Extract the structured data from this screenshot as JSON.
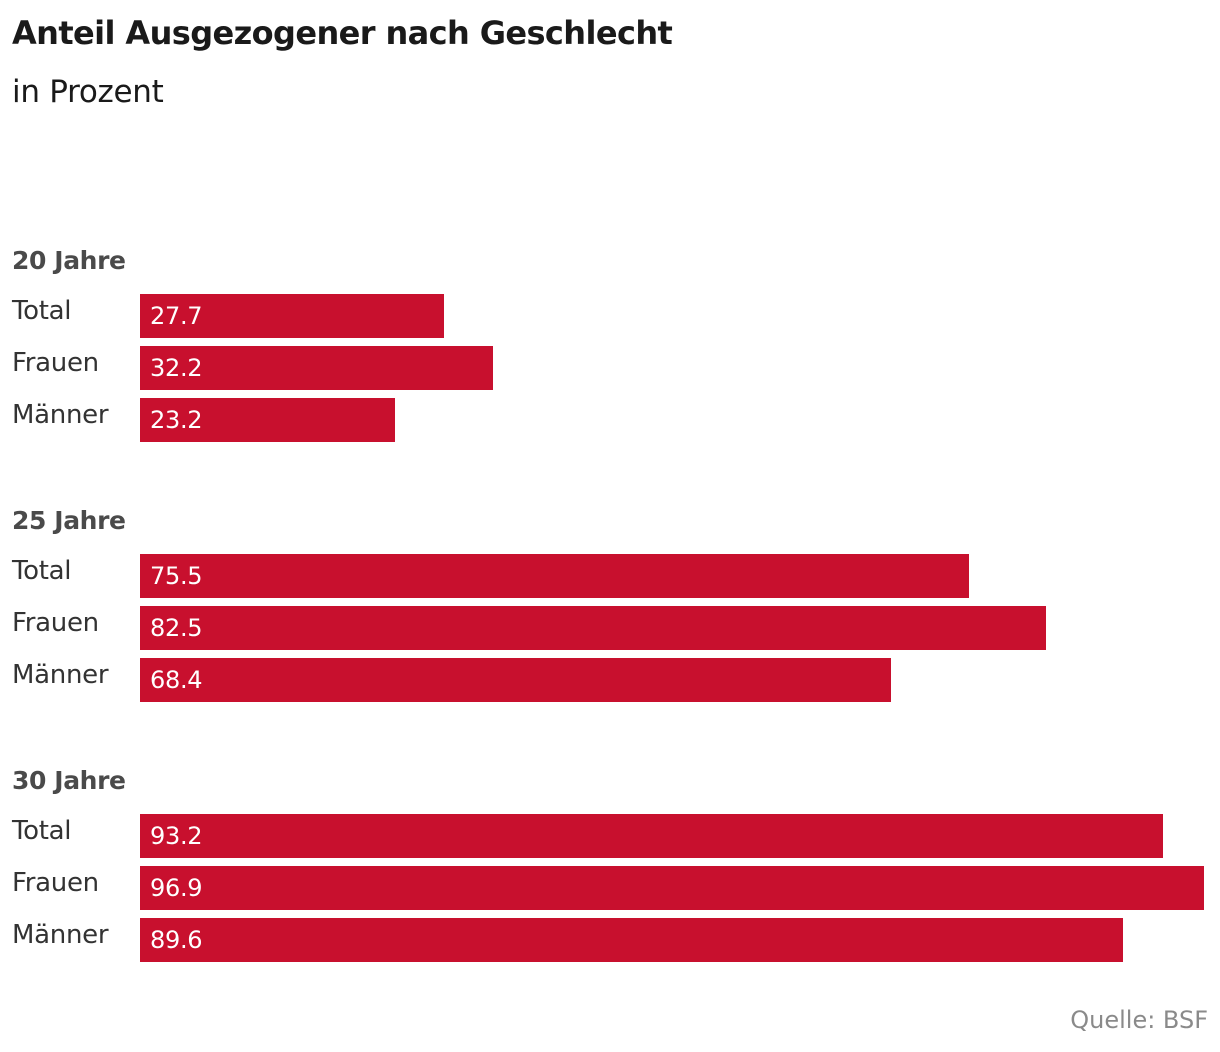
{
  "chart_data": {
    "type": "bar",
    "orientation": "horizontal",
    "title": "Anteil Ausgezogener nach Geschlecht",
    "subtitle": "in Prozent",
    "source": "Quelle: BSF",
    "bar_color": "#c8102e",
    "xlim": [
      0,
      100
    ],
    "groups": [
      {
        "label": "20 Jahre",
        "categories": [
          "Total",
          "Frauen",
          "Männer"
        ],
        "values": [
          27.7,
          32.2,
          23.2
        ]
      },
      {
        "label": "25 Jahre",
        "categories": [
          "Total",
          "Frauen",
          "Männer"
        ],
        "values": [
          75.5,
          82.5,
          68.4
        ]
      },
      {
        "label": "30 Jahre",
        "categories": [
          "Total",
          "Frauen",
          "Männer"
        ],
        "values": [
          93.2,
          96.9,
          89.6
        ]
      }
    ]
  }
}
